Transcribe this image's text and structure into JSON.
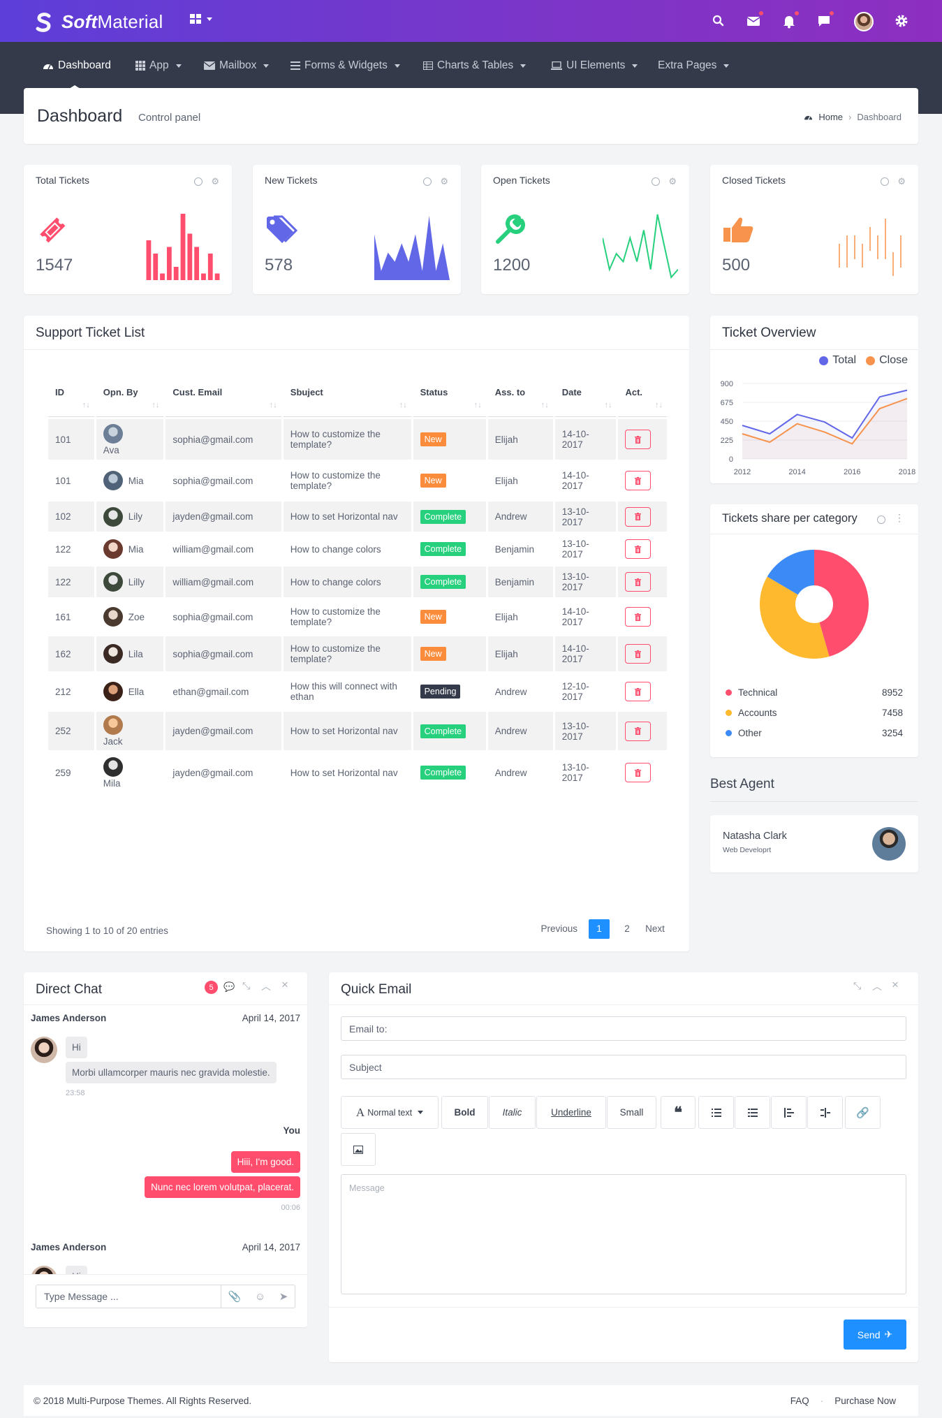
{
  "brand": {
    "name_bold": "Soft",
    "name_rest": "Material"
  },
  "nav": [
    {
      "label": "Dashboard",
      "icon": "dashboard-icon",
      "active": true,
      "caret": false
    },
    {
      "label": "App",
      "icon": "grid-icon",
      "active": false,
      "caret": true
    },
    {
      "label": "Mailbox",
      "icon": "mail-icon",
      "active": false,
      "caret": true
    },
    {
      "label": "Forms & Widgets",
      "icon": "list-icon",
      "active": false,
      "caret": true
    },
    {
      "label": "Charts & Tables",
      "icon": "table-icon",
      "active": false,
      "caret": true
    },
    {
      "label": "UI Elements",
      "icon": "laptop-icon",
      "active": false,
      "caret": true
    },
    {
      "label": "Extra Pages",
      "icon": "",
      "active": false,
      "caret": true
    }
  ],
  "page": {
    "title": "Dashboard",
    "subtitle": "Control panel",
    "breadcrumb_home": "Home",
    "breadcrumb_current": "Dashboard"
  },
  "stats": [
    {
      "title": "Total Tickets",
      "value": "1547",
      "color": "#ff4d6d",
      "icon": "ticket-icon",
      "spark": "bar",
      "data": [
        6,
        4,
        1,
        5,
        2,
        10,
        7,
        5,
        1,
        4,
        1
      ]
    },
    {
      "title": "New Tickets",
      "value": "578",
      "color": "#6267e8",
      "icon": "tag-icon",
      "spark": "area",
      "data": [
        5,
        1,
        3,
        2,
        4,
        2,
        5,
        1,
        7,
        1,
        4,
        0
      ]
    },
    {
      "title": "Open Tickets",
      "value": "1200",
      "color": "#26d07c",
      "icon": "wrench-icon",
      "spark": "line",
      "data": [
        5,
        1,
        3,
        2,
        5,
        2,
        6,
        1,
        8,
        4,
        0,
        1
      ]
    },
    {
      "title": "Closed Tickets",
      "value": "500",
      "color": "#f7934c",
      "icon": "thumbs-up-icon",
      "spark": "dash",
      "data": [
        [
          1,
          4,
          6
        ],
        [
          2,
          3,
          6
        ],
        [
          3,
          3,
          5
        ],
        [
          4,
          4,
          6
        ],
        [
          5,
          2,
          4
        ],
        [
          6,
          3,
          5
        ],
        [
          7,
          1,
          5
        ],
        [
          8,
          5,
          7
        ],
        [
          9,
          3,
          6
        ]
      ]
    }
  ],
  "tickets": {
    "title": "Support Ticket List",
    "headers": [
      "ID",
      "Opn. By",
      "Cust. Email",
      "Sbuject",
      "Status",
      "Ass. to",
      "Date",
      "Act."
    ],
    "rows": [
      {
        "id": "101",
        "user": "Ava",
        "stack": true,
        "email": "sophia@gmail.com",
        "subject": "How to customize the template?",
        "status": "New",
        "assignee": "Elijah",
        "date": "14-10-2017",
        "ava": [
          "#c9d3dd",
          "#6c7f96"
        ]
      },
      {
        "id": "101",
        "user": "Mia",
        "stack": false,
        "email": "sophia@gmail.com",
        "subject": "How to customize the template?",
        "status": "New",
        "assignee": "Elijah",
        "date": "14-10-2017",
        "ava": [
          "#b9c7d6",
          "#4f6278"
        ]
      },
      {
        "id": "102",
        "user": "Lily",
        "stack": false,
        "email": "jayden@gmail.com",
        "subject": "How to set Horizontal nav",
        "status": "Complete",
        "assignee": "Andrew",
        "date": "13-10-2017",
        "ava": [
          "#e7e7e7",
          "#3d4a3b"
        ]
      },
      {
        "id": "122",
        "user": "Mia",
        "stack": false,
        "email": "william@gmail.com",
        "subject": "How to change colors",
        "status": "Complete",
        "assignee": "Benjamin",
        "date": "13-10-2017",
        "ava": [
          "#f1d5c6",
          "#6b3a2e"
        ]
      },
      {
        "id": "122",
        "user": "Lilly",
        "stack": false,
        "email": "william@gmail.com",
        "subject": "How to change colors",
        "status": "Complete",
        "assignee": "Benjamin",
        "date": "13-10-2017",
        "ava": [
          "#e7e7e7",
          "#3d4a3b"
        ]
      },
      {
        "id": "161",
        "user": "Zoe",
        "stack": false,
        "email": "sophia@gmail.com",
        "subject": "How to customize the template?",
        "status": "New",
        "assignee": "Elijah",
        "date": "14-10-2017",
        "ava": [
          "#e8d8cc",
          "#4b3a30"
        ]
      },
      {
        "id": "162",
        "user": "Lila",
        "stack": false,
        "email": "sophia@gmail.com",
        "subject": "How to customize the template?",
        "status": "New",
        "assignee": "Elijah",
        "date": "14-10-2017",
        "ava": [
          "#f0e6e0",
          "#3b2a24"
        ]
      },
      {
        "id": "212",
        "user": "Ella",
        "stack": false,
        "email": "ethan@gmail.com",
        "subject": "How this will connect with ethan",
        "status": "Pending",
        "assignee": "Andrew",
        "date": "12-10-2017",
        "ava": [
          "#d9a07a",
          "#3a2218"
        ]
      },
      {
        "id": "252",
        "user": "Jack",
        "stack": true,
        "email": "jayden@gmail.com",
        "subject": "How to set Horizontal nav",
        "status": "Complete",
        "assignee": "Andrew",
        "date": "13-10-2017",
        "ava": [
          "#f6c89a",
          "#b07a4c"
        ]
      },
      {
        "id": "259",
        "user": "Mila",
        "stack": true,
        "email": "jayden@gmail.com",
        "subject": "How to set Horizontal nav",
        "status": "Complete",
        "assignee": "Andrew",
        "date": "13-10-2017",
        "ava": [
          "#e4e4e4",
          "#2f2f2f"
        ]
      }
    ],
    "status_colors": {
      "New": "#fb8c3c",
      "Complete": "#26d07c",
      "Pending": "#343a4a"
    },
    "showing": "Showing 1 to 10 of 20 entries",
    "pager": {
      "previous": "Previous",
      "pages": [
        "1",
        "2"
      ],
      "next": "Next"
    }
  },
  "overview": {
    "title": "Ticket Overview",
    "legend": [
      "Total",
      "Close"
    ]
  },
  "chart_data": {
    "type": "line",
    "x": [
      2012,
      2013,
      2014,
      2015,
      2016,
      2017,
      2018
    ],
    "series": [
      {
        "name": "Total",
        "color": "#6267e8",
        "values": [
          400,
          300,
          530,
          440,
          250,
          740,
          820
        ]
      },
      {
        "name": "Close",
        "color": "#f7934c",
        "values": [
          300,
          200,
          420,
          320,
          180,
          600,
          720
        ]
      }
    ],
    "ylim": [
      0,
      900
    ],
    "yticks": [
      "900",
      "675",
      "450",
      "225",
      "0"
    ],
    "xticks": [
      "2012",
      "2014",
      "2016",
      "2018"
    ]
  },
  "share": {
    "title": "Tickets share per category",
    "items": [
      {
        "label": "Technical",
        "value": "8952",
        "num": 8952,
        "color": "#ff4d6d"
      },
      {
        "label": "Accounts",
        "value": "7458",
        "num": 7458,
        "color": "#ffb92e"
      },
      {
        "label": "Other",
        "value": "3254",
        "num": 3254,
        "color": "#3b8af5"
      }
    ]
  },
  "agent": {
    "section": "Best Agent",
    "name": "Natasha Clark",
    "role": "Web Developrt"
  },
  "chat": {
    "title": "Direct Chat",
    "count": "5",
    "groups": [
      {
        "name": "James Anderson",
        "date": "April 14, 2017"
      },
      {
        "name": "James Anderson",
        "date": "April 14, 2017"
      }
    ],
    "msg1": "Hi",
    "msg2": "Morbi ullamcorper mauris nec gravida molestie.",
    "time1": "23:58",
    "you": "You",
    "reply1": "Hiii, I'm good.",
    "reply2": "Nunc nec lorem volutpat, placerat.",
    "time2": "00:06",
    "msg3": "Hi",
    "placeholder": "Type Message ..."
  },
  "email": {
    "title": "Quick Email",
    "to_placeholder": "Email to:",
    "subject_placeholder": "Subject",
    "message_placeholder": "Message",
    "toolbar": {
      "normal": "Normal text",
      "bold": "Bold",
      "italic": "Italic",
      "underline": "Underline",
      "small": "Small"
    },
    "send": "Send"
  },
  "footer": {
    "copyright": "© 2018 Multi-Purpose Themes. All Rights Reserved.",
    "faq": "FAQ",
    "purchase": "Purchase Now"
  }
}
